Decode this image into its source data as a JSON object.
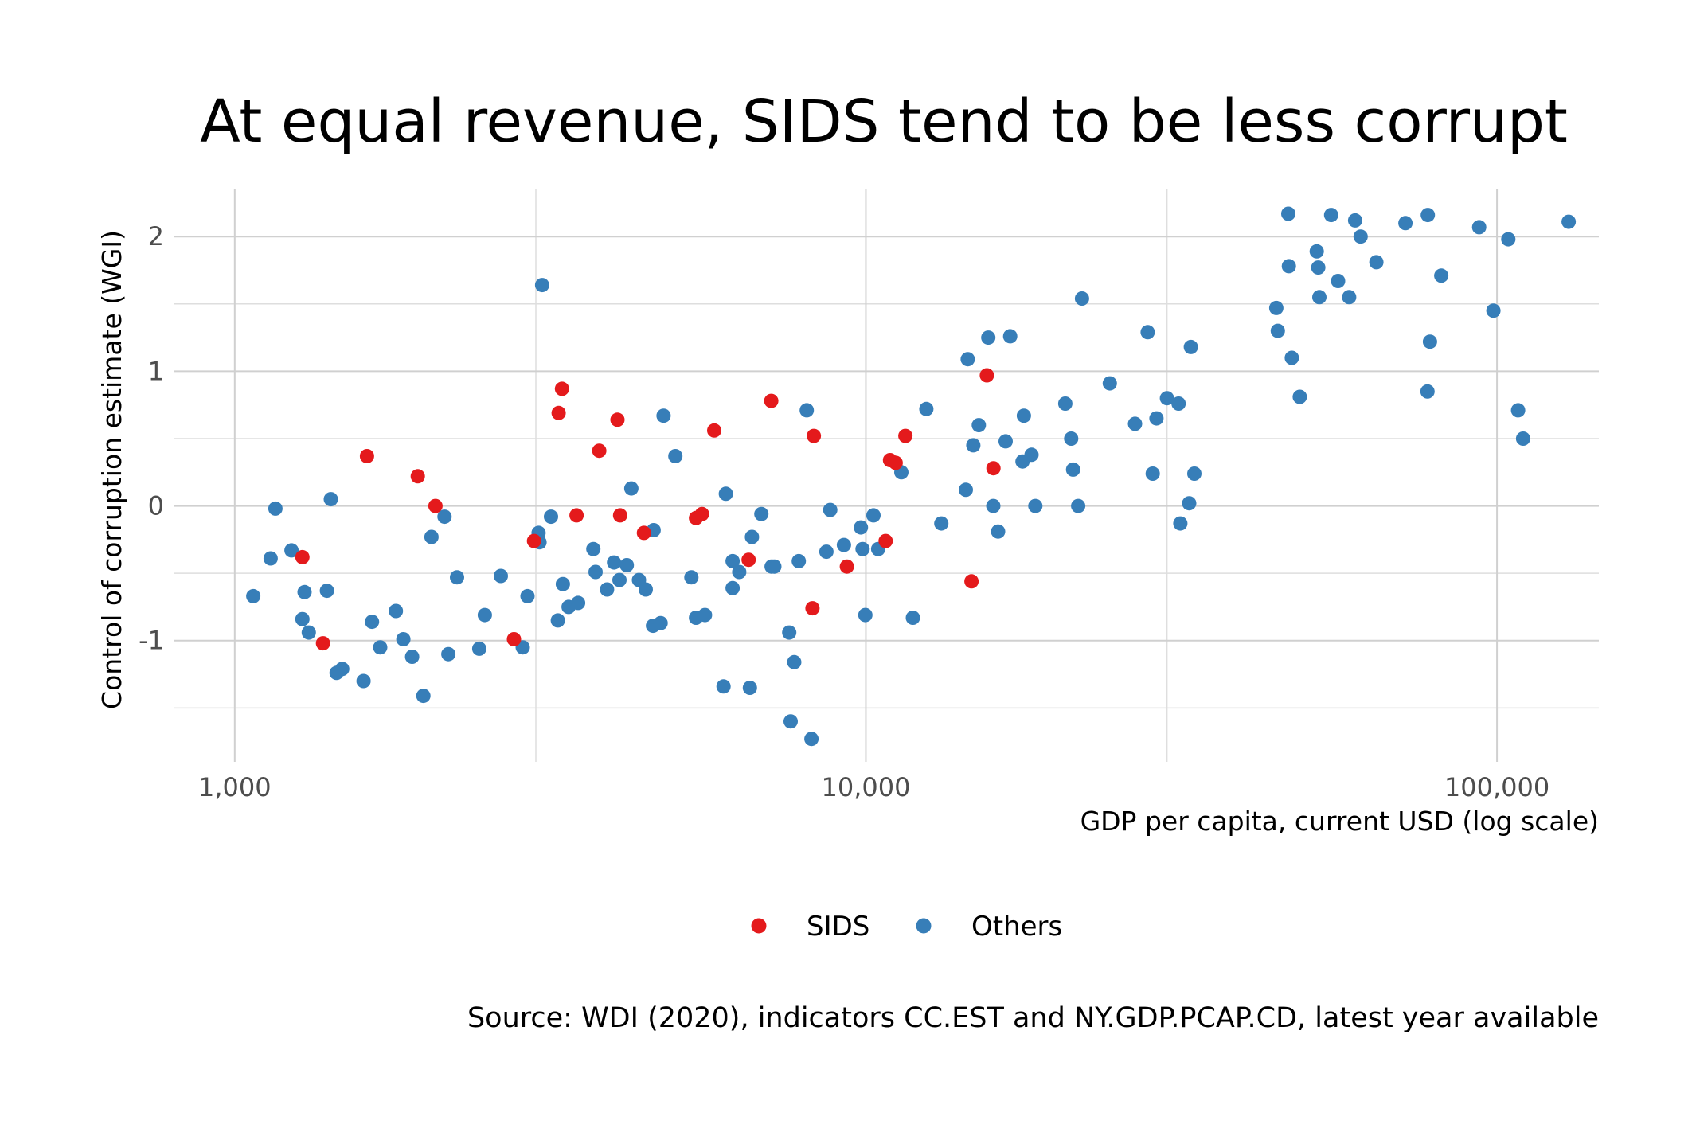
{
  "chart_data": {
    "type": "scatter",
    "title": "At equal revenue, SIDS tend to be less corrupt",
    "xlabel": "GDP per capita, current USD (log scale)",
    "ylabel": "Control of corruption estimate (WGI)",
    "caption": "Source: WDI (2020), indicators CC.EST and NY.GDP.PCAP.CD, latest year available",
    "x_scale": "log",
    "xlim": [
      800,
      145000
    ],
    "ylim": [
      -1.9,
      2.35
    ],
    "x_ticks": [
      {
        "value": 1000,
        "label": "1,000"
      },
      {
        "value": 10000,
        "label": "10,000"
      },
      {
        "value": 100000,
        "label": "100,000"
      }
    ],
    "y_ticks": [
      {
        "value": 2,
        "label": "2"
      },
      {
        "value": 1,
        "label": "1"
      },
      {
        "value": 0,
        "label": "0"
      },
      {
        "value": -1,
        "label": "-1"
      }
    ],
    "grid": true,
    "legend_position": "bottom",
    "series": [
      {
        "name": "SIDS",
        "color": "#e41a1c",
        "points": [
          [
            1280,
            -0.38
          ],
          [
            1380,
            -1.02
          ],
          [
            1620,
            0.37
          ],
          [
            1950,
            0.22
          ],
          [
            2080,
            0.0
          ],
          [
            2770,
            -0.99
          ],
          [
            2980,
            -0.26
          ],
          [
            3300,
            0.87
          ],
          [
            3260,
            0.69
          ],
          [
            3480,
            -0.07
          ],
          [
            3780,
            0.41
          ],
          [
            4040,
            0.64
          ],
          [
            4080,
            -0.07
          ],
          [
            4450,
            -0.2
          ],
          [
            5380,
            -0.09
          ],
          [
            5500,
            -0.06
          ],
          [
            5750,
            0.56
          ],
          [
            6520,
            -0.4
          ],
          [
            7080,
            0.78
          ],
          [
            8230,
            -0.76
          ],
          [
            8270,
            0.52
          ],
          [
            9330,
            -0.45
          ],
          [
            10750,
            -0.26
          ],
          [
            10920,
            0.34
          ],
          [
            11150,
            0.32
          ],
          [
            11550,
            0.52
          ],
          [
            14700,
            -0.56
          ],
          [
            15550,
            0.97
          ],
          [
            15930,
            0.28
          ]
        ]
      },
      {
        "name": "Others",
        "color": "#377eb8",
        "points": [
          [
            1070,
            -0.67
          ],
          [
            1140,
            -0.39
          ],
          [
            1160,
            -0.02
          ],
          [
            1230,
            -0.33
          ],
          [
            1280,
            -0.84
          ],
          [
            1290,
            -0.64
          ],
          [
            1310,
            -0.94
          ],
          [
            1400,
            -0.63
          ],
          [
            1420,
            0.05
          ],
          [
            1450,
            -1.24
          ],
          [
            1480,
            -1.21
          ],
          [
            1600,
            -1.3
          ],
          [
            1650,
            -0.86
          ],
          [
            1700,
            -1.05
          ],
          [
            1800,
            -0.78
          ],
          [
            1850,
            -0.99
          ],
          [
            1910,
            -1.12
          ],
          [
            1990,
            -1.41
          ],
          [
            2050,
            -0.23
          ],
          [
            2150,
            -0.08
          ],
          [
            2180,
            -1.1
          ],
          [
            2250,
            -0.53
          ],
          [
            2440,
            -1.06
          ],
          [
            2490,
            -0.81
          ],
          [
            2640,
            -0.52
          ],
          [
            2860,
            -1.05
          ],
          [
            2910,
            -0.67
          ],
          [
            3030,
            -0.2
          ],
          [
            3040,
            -0.27
          ],
          [
            3070,
            1.64
          ],
          [
            3170,
            -0.08
          ],
          [
            3250,
            -0.85
          ],
          [
            3310,
            -0.58
          ],
          [
            3380,
            -0.75
          ],
          [
            3500,
            -0.72
          ],
          [
            3700,
            -0.32
          ],
          [
            3730,
            -0.49
          ],
          [
            3890,
            -0.62
          ],
          [
            3990,
            -0.42
          ],
          [
            4070,
            -0.55
          ],
          [
            4180,
            -0.44
          ],
          [
            4250,
            0.13
          ],
          [
            4370,
            -0.55
          ],
          [
            4480,
            -0.62
          ],
          [
            4600,
            -0.89
          ],
          [
            4610,
            -0.18
          ],
          [
            4730,
            -0.87
          ],
          [
            4780,
            0.67
          ],
          [
            4990,
            0.37
          ],
          [
            5290,
            -0.53
          ],
          [
            5380,
            -0.83
          ],
          [
            5560,
            -0.81
          ],
          [
            5950,
            -1.34
          ],
          [
            6000,
            0.09
          ],
          [
            6150,
            -0.41
          ],
          [
            6150,
            -0.61
          ],
          [
            6300,
            -0.49
          ],
          [
            6550,
            -1.35
          ],
          [
            6600,
            -0.23
          ],
          [
            6830,
            -0.06
          ],
          [
            7090,
            -0.45
          ],
          [
            7160,
            -0.45
          ],
          [
            7560,
            -0.94
          ],
          [
            7600,
            -1.6
          ],
          [
            7700,
            -1.16
          ],
          [
            7830,
            -0.41
          ],
          [
            8060,
            0.71
          ],
          [
            8200,
            -1.73
          ],
          [
            8660,
            -0.34
          ],
          [
            8780,
            -0.03
          ],
          [
            9230,
            -0.29
          ],
          [
            9820,
            -0.16
          ],
          [
            9880,
            -0.32
          ],
          [
            9980,
            -0.81
          ],
          [
            10280,
            -0.07
          ],
          [
            10460,
            -0.32
          ],
          [
            11380,
            0.25
          ],
          [
            11870,
            -0.83
          ],
          [
            12470,
            0.72
          ],
          [
            13170,
            -0.13
          ],
          [
            14400,
            0.12
          ],
          [
            14500,
            1.09
          ],
          [
            14800,
            0.45
          ],
          [
            15100,
            0.6
          ],
          [
            15630,
            1.25
          ],
          [
            15920,
            0.0
          ],
          [
            16200,
            -0.19
          ],
          [
            16650,
            0.48
          ],
          [
            16930,
            1.26
          ],
          [
            17710,
            0.33
          ],
          [
            17800,
            0.67
          ],
          [
            18300,
            0.38
          ],
          [
            18560,
            0.0
          ],
          [
            20700,
            0.76
          ],
          [
            21150,
            0.5
          ],
          [
            21300,
            0.27
          ],
          [
            21700,
            0.0
          ],
          [
            22000,
            1.54
          ],
          [
            24350,
            0.91
          ],
          [
            26700,
            0.61
          ],
          [
            27960,
            1.29
          ],
          [
            28480,
            0.24
          ],
          [
            28870,
            0.65
          ],
          [
            30000,
            0.8
          ],
          [
            31300,
            0.76
          ],
          [
            31500,
            -0.13
          ],
          [
            32530,
            0.02
          ],
          [
            33150,
            0.24
          ],
          [
            32730,
            1.18
          ],
          [
            44700,
            1.47
          ],
          [
            44950,
            1.3
          ],
          [
            46700,
            2.17
          ],
          [
            46800,
            1.78
          ],
          [
            47300,
            1.1
          ],
          [
            48700,
            0.81
          ],
          [
            51800,
            1.89
          ],
          [
            52100,
            1.77
          ],
          [
            52300,
            1.55
          ],
          [
            54600,
            2.16
          ],
          [
            56000,
            1.67
          ],
          [
            58300,
            1.55
          ],
          [
            59600,
            2.12
          ],
          [
            60800,
            2.0
          ],
          [
            64400,
            1.81
          ],
          [
            71600,
            2.1
          ],
          [
            77700,
            2.16
          ],
          [
            77600,
            0.85
          ],
          [
            78300,
            1.22
          ],
          [
            81600,
            1.71
          ],
          [
            93700,
            2.07
          ],
          [
            98700,
            1.45
          ],
          [
            104200,
            1.98
          ],
          [
            108000,
            0.71
          ],
          [
            110000,
            0.5
          ],
          [
            129900,
            2.11
          ]
        ]
      }
    ]
  }
}
